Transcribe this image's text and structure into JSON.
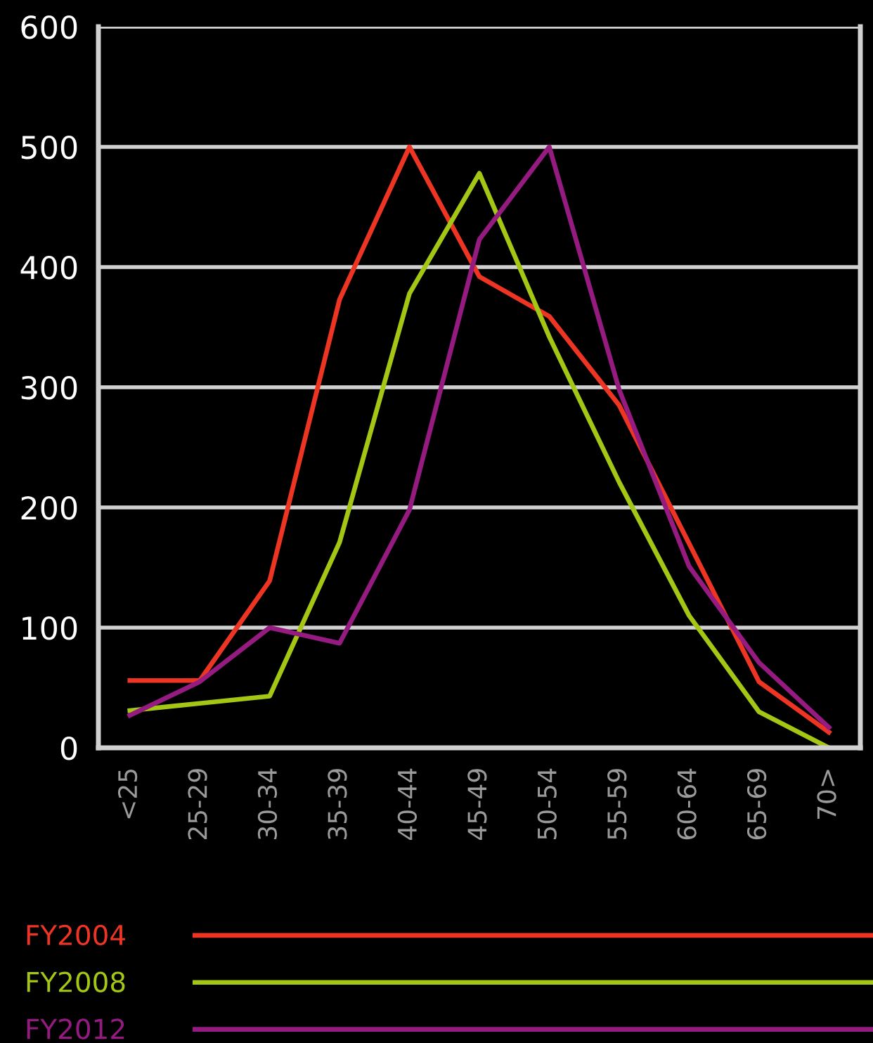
{
  "chart_data": {
    "type": "line",
    "categories": [
      "<25",
      "25-29",
      "30-34",
      "35-39",
      "40-44",
      "45-49",
      "50-54",
      "55-59",
      "60-64",
      "65-69",
      "70>"
    ],
    "series": [
      {
        "name": "FY2004",
        "color": "#ee3524",
        "values": [
          56,
          56,
          139,
          373,
          500,
          392,
          359,
          285,
          170,
          55,
          13
        ]
      },
      {
        "name": "FY2008",
        "color": "#a4c615",
        "values": [
          31,
          37,
          43,
          171,
          378,
          478,
          342,
          221,
          110,
          30,
          0
        ]
      },
      {
        "name": "FY2012",
        "color": "#951b81",
        "values": [
          27,
          55,
          100,
          87,
          198,
          423,
          500,
          298,
          151,
          71,
          17
        ]
      }
    ],
    "ylim": [
      0,
      600
    ],
    "yticks": [
      0,
      100,
      200,
      300,
      400,
      500,
      600
    ],
    "grid": "y",
    "legend": "bottom",
    "marker": "none",
    "line_style": "solid"
  }
}
